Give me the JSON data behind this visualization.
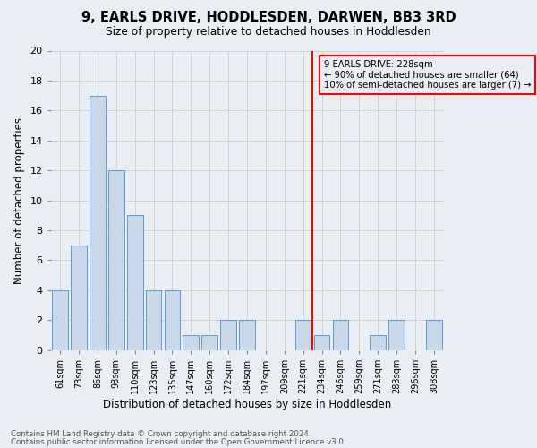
{
  "title": "9, EARLS DRIVE, HODDLESDEN, DARWEN, BB3 3RD",
  "subtitle": "Size of property relative to detached houses in Hoddlesden",
  "xlabel": "Distribution of detached houses by size in Hoddlesden",
  "ylabel": "Number of detached properties",
  "footnote1": "Contains HM Land Registry data © Crown copyright and database right 2024.",
  "footnote2": "Contains public sector information licensed under the Open Government Licence v3.0.",
  "categories": [
    "61sqm",
    "73sqm",
    "86sqm",
    "98sqm",
    "110sqm",
    "123sqm",
    "135sqm",
    "147sqm",
    "160sqm",
    "172sqm",
    "184sqm",
    "197sqm",
    "209sqm",
    "221sqm",
    "234sqm",
    "246sqm",
    "259sqm",
    "271sqm",
    "283sqm",
    "296sqm",
    "308sqm"
  ],
  "values": [
    4,
    7,
    17,
    12,
    9,
    4,
    4,
    1,
    1,
    2,
    2,
    0,
    0,
    2,
    1,
    2,
    0,
    1,
    2,
    0,
    2
  ],
  "bar_color": "#c8d8e8",
  "bar_edge_color": "#5b9bd5",
  "vline_x": 13.5,
  "vline_color": "red",
  "annotation_text": "9 EARLS DRIVE: 228sqm\n← 90% of detached houses are smaller (64)\n10% of semi-detached houses are larger (7) →",
  "annotation_box_color": "red",
  "ylim": [
    0,
    20
  ],
  "yticks": [
    0,
    2,
    4,
    6,
    8,
    10,
    12,
    14,
    16,
    18,
    20
  ],
  "grid_color": "#d0d0d0",
  "background_color": "#e8eef4"
}
